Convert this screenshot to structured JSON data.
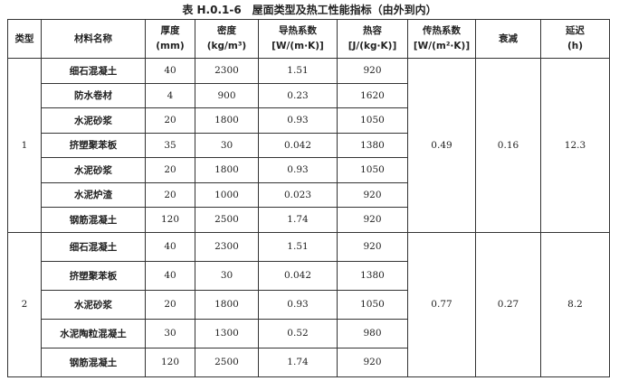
{
  "title": "表 H.0.1-6　屋面类型及热工性能指标（由外到内）",
  "headers": [
    [
      "类型",
      ""
    ],
    [
      "材料名称",
      ""
    ],
    [
      "厚度",
      "(mm)"
    ],
    [
      "密度",
      "(kg/m³)"
    ],
    [
      "导热系数",
      "[W/(m·K)]"
    ],
    [
      "热容",
      "[J/(kg·K)]"
    ],
    [
      "传热系数",
      "[W/(m²·K)]"
    ],
    [
      "衰减",
      ""
    ],
    [
      "延迟",
      "(h)"
    ]
  ],
  "groups": [
    {
      "type": "1",
      "u": "0.49",
      "decay": "0.16",
      "delay": "12.3",
      "rows": [
        [
          "细石混凝土",
          "40",
          "2300",
          "1.51",
          "920"
        ],
        [
          "防水卷材",
          "4",
          "900",
          "0.23",
          "1620"
        ],
        [
          "水泥砂浆",
          "20",
          "1800",
          "0.93",
          "1050"
        ],
        [
          "挤塑聚苯板",
          "35",
          "30",
          "0.042",
          "1380"
        ],
        [
          "水泥砂浆",
          "20",
          "1800",
          "0.93",
          "1050"
        ],
        [
          "水泥炉渣",
          "20",
          "1000",
          "0.023",
          "920"
        ],
        [
          "钢筋混凝土",
          "120",
          "2500",
          "1.74",
          "920"
        ]
      ]
    },
    {
      "type": "2",
      "u": "0.77",
      "decay": "0.27",
      "delay": "8.2",
      "rows": [
        [
          "细石混凝土",
          "40",
          "2300",
          "1.51",
          "920"
        ],
        [
          "挤塑聚苯板",
          "40",
          "30",
          "0.042",
          "1380"
        ],
        [
          "水泥砂浆",
          "20",
          "1800",
          "0.93",
          "1050"
        ],
        [
          "水泥陶粒混凝土",
          "30",
          "1300",
          "0.52",
          "980"
        ],
        [
          "钢筋混凝土",
          "120",
          "2500",
          "1.74",
          "920"
        ]
      ]
    }
  ]
}
